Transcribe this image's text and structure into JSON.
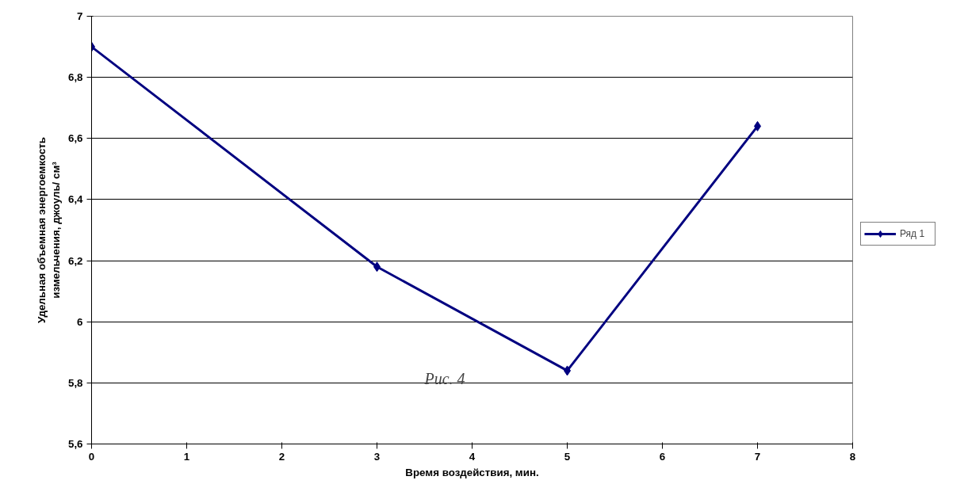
{
  "chart_data": {
    "type": "line",
    "xlabel": "Время воздействия, мин.",
    "ylabel": "Удельная объемная энергоемкость измельчения, джоуль/ см³",
    "x": [
      0,
      3,
      5,
      7
    ],
    "series": [
      {
        "name": "Ряд 1",
        "color": "#000080",
        "values": [
          6.9,
          6.18,
          5.84,
          6.64
        ]
      }
    ],
    "xlim": [
      0,
      8
    ],
    "xticks": [
      0,
      1,
      2,
      3,
      4,
      5,
      6,
      7,
      8
    ],
    "ylim": [
      5.6,
      7
    ],
    "yticks": [
      {
        "value": 5.6,
        "label": "5,6"
      },
      {
        "value": 5.8,
        "label": "5,8"
      },
      {
        "value": 6,
        "label": "6"
      },
      {
        "value": 6.2,
        "label": "6,2"
      },
      {
        "value": 6.4,
        "label": "6,4"
      },
      {
        "value": 6.6,
        "label": "6,6"
      },
      {
        "value": 6.8,
        "label": "6,8"
      },
      {
        "value": 7,
        "label": "7"
      }
    ],
    "annotations": [
      "Рис. 4"
    ],
    "grid": "y",
    "legend": "right",
    "marker": "diamond",
    "line_style": "solid"
  }
}
